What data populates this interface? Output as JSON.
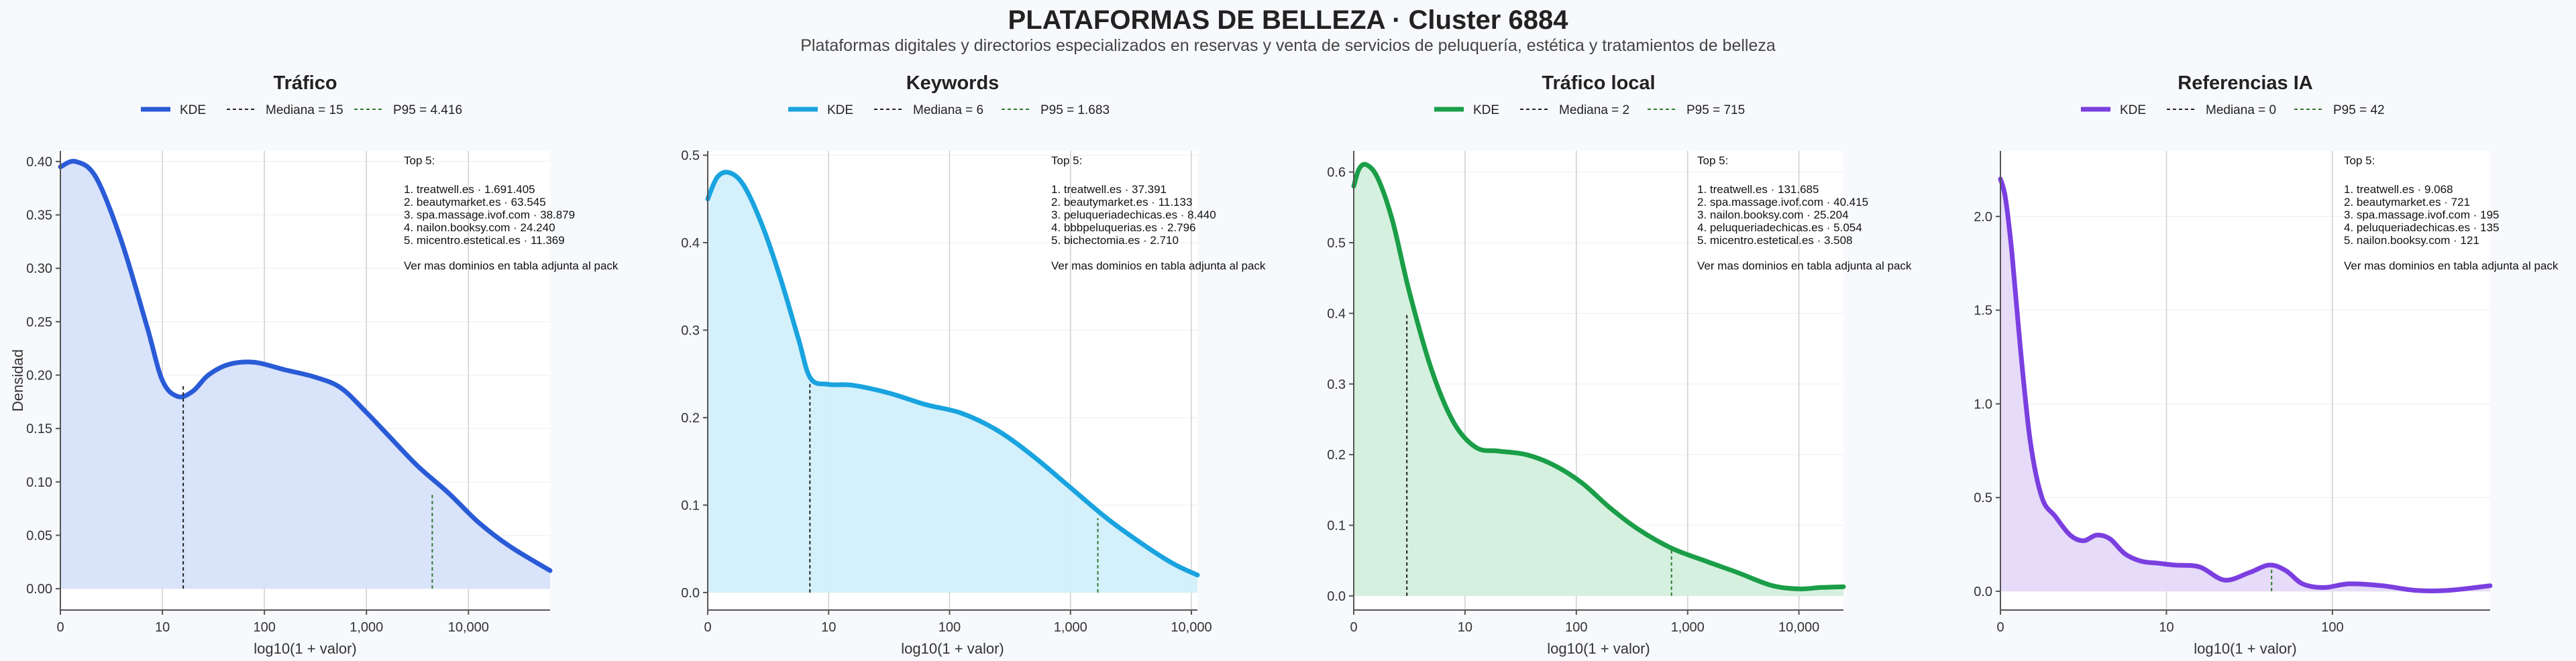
{
  "header": {
    "title": "PLATAFORMAS DE BELLEZA · Cluster 6884",
    "subtitle": "Plataformas digitales y directorios especializados en reservas y venta de servicios de peluquería, estética y tratamientos de belleza"
  },
  "colors": {
    "grid": "#cfcfcf",
    "axis": "#555555",
    "median_line": "#222222",
    "p95_line": "#2f7a2f"
  },
  "legend_labels": {
    "kde": "KDE"
  },
  "common": {
    "xlabel": "log10(1 + valor)",
    "ylabel": "Densidad",
    "top_title": "Top 5:",
    "more_note": "Ver mas dominios en tabla adjunta al pack"
  },
  "chart_data": [
    {
      "type": "area",
      "title": "Tráfico",
      "color": "#2a5bd7",
      "fill": "#d7e1fa",
      "xlabel": "log10(1 + valor)",
      "ylabel": "Densidad",
      "x_scale": "log10(1+x)",
      "xlim": [
        0,
        4.8
      ],
      "ylim": [
        -0.02,
        0.41
      ],
      "xticks": [
        0,
        1,
        2,
        3,
        4
      ],
      "xtick_labels": [
        "0",
        "10",
        "100",
        "1,000",
        "10,000"
      ],
      "yticks": [
        0,
        0.05,
        0.1,
        0.15,
        0.2,
        0.25,
        0.3,
        0.35,
        0.4
      ],
      "ytick_labels": [
        "0.00",
        "0.05",
        "0.10",
        "0.15",
        "0.20",
        "0.25",
        "0.30",
        "0.35",
        "0.40"
      ],
      "legend": {
        "kde": "KDE",
        "median": "Mediana = 15",
        "p95": "P95 = 4.416"
      },
      "median": 15,
      "median_density": 0.19,
      "p95": 4416,
      "p95_density": 0.09,
      "kde": {
        "x": [
          0,
          0.15,
          0.35,
          0.6,
          0.85,
          1.0,
          1.15,
          1.3,
          1.45,
          1.65,
          1.9,
          2.2,
          2.5,
          2.75,
          3.0,
          3.2,
          3.5,
          3.8,
          4.1,
          4.4,
          4.8
        ],
        "y": [
          0.395,
          0.4,
          0.385,
          0.325,
          0.245,
          0.195,
          0.18,
          0.185,
          0.2,
          0.21,
          0.212,
          0.205,
          0.198,
          0.188,
          0.165,
          0.145,
          0.115,
          0.09,
          0.062,
          0.04,
          0.017
        ]
      },
      "top5": [
        "1. treatwell.es · 1.691.405",
        "2. beautymarket.es · 63.545",
        "3. spa.massage.ivof.com · 38.879",
        "4. nailon.booksy.com · 24.240",
        "5. micentro.estetical.es · 11.369"
      ]
    },
    {
      "type": "area",
      "title": "Keywords",
      "color": "#19a3df",
      "fill": "#d2effb",
      "xlabel": "log10(1 + valor)",
      "ylabel": "",
      "x_scale": "log10(1+x)",
      "xlim": [
        0,
        4.05
      ],
      "ylim": [
        -0.02,
        0.505
      ],
      "xticks": [
        0,
        1,
        2,
        3,
        4
      ],
      "xtick_labels": [
        "0",
        "10",
        "100",
        "1,000",
        "10,000"
      ],
      "yticks": [
        0,
        0.1,
        0.2,
        0.3,
        0.4,
        0.5
      ],
      "ytick_labels": [
        "0.0",
        "0.1",
        "0.2",
        "0.3",
        "0.4",
        "0.5"
      ],
      "legend": {
        "kde": "KDE",
        "median": "Mediana = 6",
        "p95": "P95 = 1.683"
      },
      "median": 6,
      "median_density": 0.24,
      "p95": 1683,
      "p95_density": 0.085,
      "kde": {
        "x": [
          0,
          0.08,
          0.18,
          0.3,
          0.45,
          0.6,
          0.75,
          0.85,
          1.0,
          1.2,
          1.5,
          1.8,
          2.1,
          2.4,
          2.7,
          3.0,
          3.3,
          3.6,
          3.85,
          4.05
        ],
        "y": [
          0.45,
          0.475,
          0.48,
          0.465,
          0.42,
          0.36,
          0.29,
          0.245,
          0.238,
          0.237,
          0.228,
          0.215,
          0.205,
          0.185,
          0.155,
          0.12,
          0.085,
          0.055,
          0.033,
          0.02
        ]
      },
      "top5": [
        "1. treatwell.es · 37.391",
        "2. beautymarket.es · 11.133",
        "3. peluqueriadechicas.es · 8.440",
        "4. bbbpeluquerias.es · 2.796",
        "5. bichectomia.es · 2.710"
      ]
    },
    {
      "type": "area",
      "title": "Tráfico local",
      "color": "#1a9e48",
      "fill": "#d3efdc",
      "xlabel": "log10(1 + valor)",
      "ylabel": "",
      "x_scale": "log10(1+x)",
      "xlim": [
        0,
        4.4
      ],
      "ylim": [
        -0.02,
        0.63
      ],
      "xticks": [
        0,
        1,
        2,
        3,
        4
      ],
      "xtick_labels": [
        "0",
        "10",
        "100",
        "1,000",
        "10,000"
      ],
      "yticks": [
        0,
        0.1,
        0.2,
        0.3,
        0.4,
        0.5,
        0.6
      ],
      "ytick_labels": [
        "0.0",
        "0.1",
        "0.2",
        "0.3",
        "0.4",
        "0.5",
        "0.6"
      ],
      "legend": {
        "kde": "KDE",
        "median": "Mediana = 2",
        "p95": "P95 = 715"
      },
      "median": 2,
      "median_density": 0.4,
      "p95": 715,
      "p95_density": 0.065,
      "kde": {
        "x": [
          0,
          0.05,
          0.12,
          0.22,
          0.35,
          0.5,
          0.7,
          0.9,
          1.1,
          1.3,
          1.55,
          1.8,
          2.05,
          2.3,
          2.55,
          2.85,
          3.15,
          3.45,
          3.75,
          4.0,
          4.2,
          4.4
        ],
        "y": [
          0.58,
          0.605,
          0.61,
          0.59,
          0.53,
          0.43,
          0.32,
          0.245,
          0.21,
          0.205,
          0.2,
          0.185,
          0.16,
          0.125,
          0.095,
          0.068,
          0.05,
          0.033,
          0.015,
          0.01,
          0.012,
          0.013
        ]
      },
      "top5": [
        "1. treatwell.es · 131.685",
        "2. spa.massage.ivof.com · 40.415",
        "3. nailon.booksy.com · 25.204",
        "4. peluqueriadechicas.es · 5.054",
        "5. micentro.estetical.es · 3.508"
      ]
    },
    {
      "type": "area",
      "title": "Referencias IA",
      "color": "#7b3fe0",
      "fill": "#e5d9f8",
      "xlabel": "log10(1 + valor)",
      "ylabel": "",
      "x_scale": "log10(1+x)",
      "xlim": [
        0,
        2.95
      ],
      "ylim": [
        -0.1,
        2.35
      ],
      "xticks": [
        0,
        1,
        2
      ],
      "xtick_labels": [
        "0",
        "10",
        "100"
      ],
      "yticks": [
        0,
        0.5,
        1,
        1.5,
        2
      ],
      "ytick_labels": [
        "0.0",
        "0.5",
        "1.0",
        "1.5",
        "2.0"
      ],
      "legend": {
        "kde": "KDE",
        "median": "Mediana = 0",
        "p95": "P95 = 42"
      },
      "median": 0,
      "median_density": 2.2,
      "p95": 42,
      "p95_density": 0.12,
      "kde": {
        "x": [
          0,
          0.03,
          0.07,
          0.12,
          0.18,
          0.25,
          0.33,
          0.42,
          0.5,
          0.58,
          0.66,
          0.75,
          0.85,
          0.95,
          1.05,
          1.2,
          1.35,
          1.5,
          1.62,
          1.72,
          1.82,
          1.95,
          2.1,
          2.3,
          2.5,
          2.7,
          2.95
        ],
        "y": [
          2.2,
          2.1,
          1.8,
          1.3,
          0.8,
          0.5,
          0.4,
          0.3,
          0.27,
          0.3,
          0.28,
          0.2,
          0.16,
          0.15,
          0.14,
          0.13,
          0.06,
          0.1,
          0.14,
          0.11,
          0.04,
          0.02,
          0.04,
          0.03,
          0.005,
          0.005,
          0.03
        ]
      },
      "top5": [
        "1. treatwell.es · 9.068",
        "2. beautymarket.es · 721",
        "3. spa.massage.ivof.com · 195",
        "4. peluqueriadechicas.es · 135",
        "5. nailon.booksy.com · 121"
      ]
    }
  ]
}
